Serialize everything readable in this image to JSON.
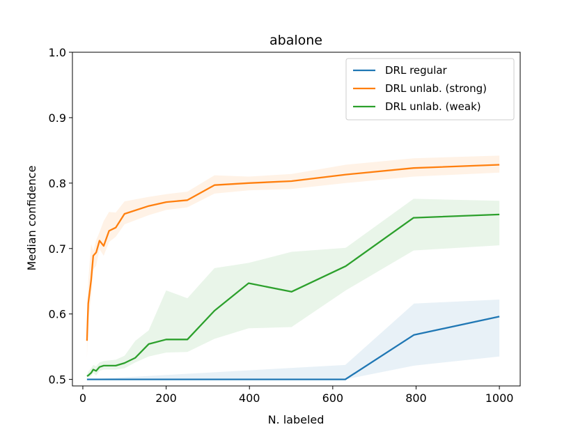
{
  "chart_data": {
    "type": "line",
    "title": "abalone",
    "xlabel": "N. labeled",
    "ylabel": "Median confidence",
    "xlim": [
      -25,
      1050
    ],
    "ylim": [
      0.49,
      1.0
    ],
    "xticks": [
      0,
      200,
      400,
      600,
      800,
      1000
    ],
    "xtick_labels": [
      "0",
      "200",
      "400",
      "600",
      "800",
      "1000"
    ],
    "yticks": [
      0.5,
      0.6,
      0.7,
      0.8,
      0.9,
      1.0
    ],
    "ytick_labels": [
      "0.5",
      "0.6",
      "0.7",
      "0.8",
      "0.9",
      "1.0"
    ],
    "grid": false,
    "legend_position": "top-right",
    "series": [
      {
        "name": "DRL regular",
        "color": "#1f77b4",
        "x": [
          10,
          630,
          795,
          1000
        ],
        "y": [
          0.5,
          0.5,
          0.568,
          0.596
        ],
        "upper": [
          0.5,
          0.522,
          0.616,
          0.622
        ],
        "lower": [
          0.5,
          0.5,
          0.521,
          0.535
        ]
      },
      {
        "name": "DRL unlab. (strong)",
        "color": "#ff7f0e",
        "x": [
          10,
          13,
          20,
          25,
          32,
          40,
          50,
          63,
          79,
          100,
          158,
          200,
          251,
          316,
          398,
          501,
          631,
          794,
          1000
        ],
        "y": [
          0.559,
          0.616,
          0.652,
          0.689,
          0.694,
          0.712,
          0.704,
          0.727,
          0.732,
          0.753,
          0.765,
          0.771,
          0.774,
          0.797,
          0.8,
          0.803,
          0.813,
          0.823,
          0.828
        ],
        "upper": [
          0.596,
          0.651,
          0.707,
          0.696,
          0.713,
          0.725,
          0.742,
          0.756,
          0.755,
          0.772,
          0.779,
          0.783,
          0.787,
          0.812,
          0.81,
          0.814,
          0.828,
          0.838,
          0.842
        ],
        "lower": [
          0.533,
          0.591,
          0.625,
          0.668,
          0.674,
          0.699,
          0.689,
          0.71,
          0.718,
          0.737,
          0.751,
          0.759,
          0.763,
          0.784,
          0.789,
          0.791,
          0.8,
          0.81,
          0.816
        ]
      },
      {
        "name": "DRL unlab. (weak)",
        "color": "#2ca02c",
        "x": [
          10,
          13,
          20,
          25,
          32,
          40,
          50,
          63,
          79,
          100,
          126,
          158,
          200,
          251,
          316,
          398,
          501,
          631,
          794,
          1000
        ],
        "y": [
          0.505,
          0.506,
          0.51,
          0.515,
          0.513,
          0.519,
          0.521,
          0.521,
          0.521,
          0.525,
          0.533,
          0.554,
          0.561,
          0.561,
          0.605,
          0.647,
          0.634,
          0.673,
          0.747,
          0.752
        ],
        "upper": [
          0.507,
          0.512,
          0.517,
          0.522,
          0.52,
          0.526,
          0.528,
          0.529,
          0.53,
          0.536,
          0.559,
          0.575,
          0.636,
          0.624,
          0.67,
          0.678,
          0.695,
          0.701,
          0.776,
          0.773
        ],
        "lower": [
          0.503,
          0.503,
          0.505,
          0.51,
          0.506,
          0.513,
          0.515,
          0.515,
          0.515,
          0.517,
          0.526,
          0.535,
          0.541,
          0.542,
          0.562,
          0.578,
          0.58,
          0.636,
          0.697,
          0.705
        ]
      }
    ]
  }
}
